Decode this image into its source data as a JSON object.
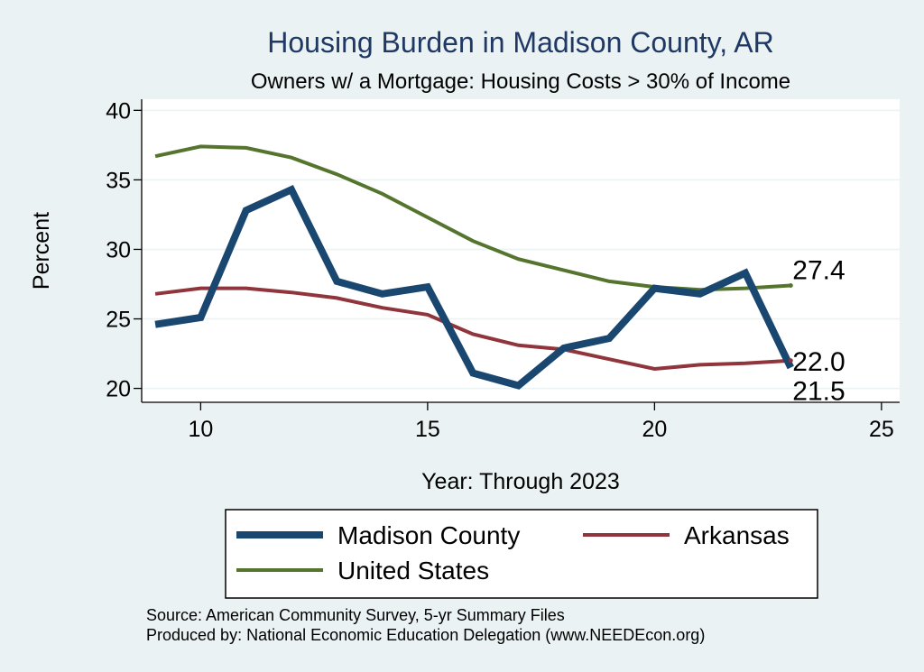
{
  "chart_data": {
    "type": "line",
    "title": "Housing Burden in Madison County, AR",
    "subtitle": "Owners w/ a Mortgage: Housing Costs > 30% of Income",
    "xlabel": "Year: Through 2023",
    "ylabel": "Percent",
    "xlim": [
      8.7,
      25.4
    ],
    "ylim": [
      19.0,
      40.8
    ],
    "xticks": [
      10,
      15,
      20,
      25
    ],
    "yticks": [
      20,
      25,
      30,
      35,
      40
    ],
    "grid": true,
    "legend_position": "bottom",
    "series": [
      {
        "name": "Madison County",
        "color": "#1a476f",
        "x": [
          9,
          10,
          11,
          12,
          13,
          14,
          15,
          16,
          17,
          18,
          19,
          20,
          21,
          22,
          23
        ],
        "values": [
          24.6,
          25.1,
          32.8,
          34.3,
          27.7,
          26.8,
          27.3,
          21.1,
          20.2,
          22.9,
          23.6,
          27.2,
          26.8,
          28.3,
          21.5
        ],
        "end_label": "21.5"
      },
      {
        "name": "Arkansas",
        "color": "#90353b",
        "x": [
          9,
          10,
          11,
          12,
          13,
          14,
          15,
          16,
          17,
          18,
          19,
          20,
          21,
          22,
          23
        ],
        "values": [
          26.8,
          27.2,
          27.2,
          26.9,
          26.5,
          25.8,
          25.3,
          23.9,
          23.1,
          22.8,
          22.1,
          21.4,
          21.7,
          21.8,
          22.0
        ],
        "end_label": "22.0"
      },
      {
        "name": "United States",
        "color": "#55752f",
        "x": [
          9,
          10,
          11,
          12,
          13,
          14,
          15,
          16,
          17,
          18,
          19,
          20,
          21,
          22,
          23
        ],
        "values": [
          36.7,
          37.4,
          37.3,
          36.6,
          35.4,
          34.0,
          32.3,
          30.6,
          29.3,
          28.5,
          27.7,
          27.3,
          27.1,
          27.2,
          27.4
        ],
        "end_label": "27.4"
      }
    ]
  },
  "source": {
    "line1": "Source: American Community Survey, 5-yr Summary Files",
    "line2": "Produced by: National Economic Education Delegation (www.NEEDEcon.org)"
  }
}
